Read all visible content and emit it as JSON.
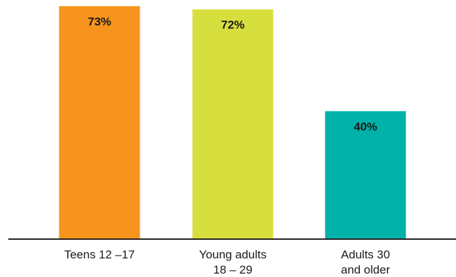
{
  "chart_data": {
    "type": "bar",
    "categories": [
      [
        "Teens 12 –17"
      ],
      [
        "Young adults",
        "18 – 29"
      ],
      [
        "Adults 30",
        "and older"
      ]
    ],
    "values": [
      73,
      72,
      40
    ],
    "value_labels": [
      "73%",
      "72%",
      "40%"
    ],
    "colors": [
      "#F7941D",
      "#D7DF3F",
      "#00B2A9"
    ],
    "ylim": [
      0,
      75
    ],
    "grid": false,
    "title": "",
    "xlabel": "",
    "ylabel": ""
  }
}
